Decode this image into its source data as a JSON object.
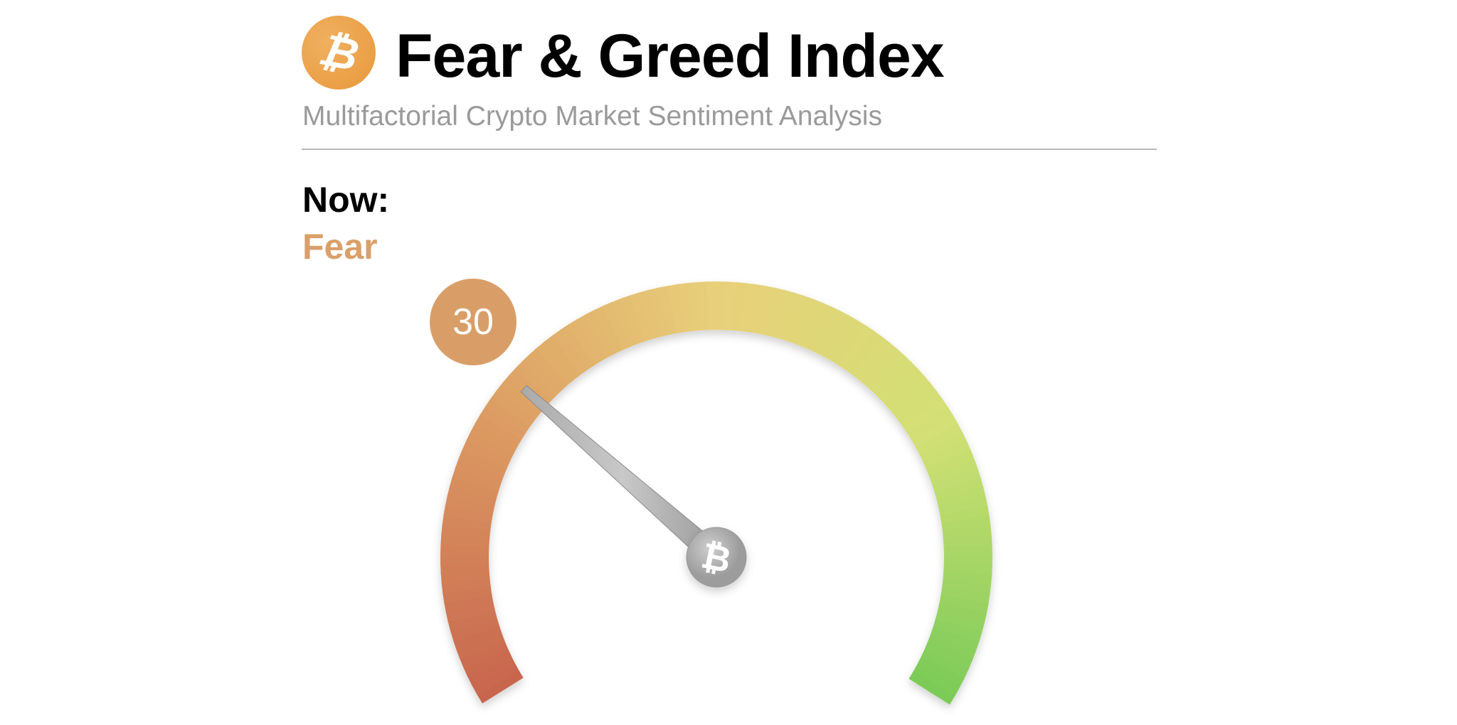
{
  "header": {
    "logo_icon": "bitcoin-icon",
    "logo_symbol": "₿",
    "title": "Fear & Greed Index",
    "subtitle": "Multifactorial Crypto Market Sentiment Analysis"
  },
  "status": {
    "label": "Now:",
    "classification": "Fear",
    "classification_color": "#d9a06a",
    "value": "30"
  },
  "gauge": {
    "min": 0,
    "max": 100,
    "value": 30,
    "hub_icon": "bitcoin-icon",
    "hub_symbol": "₿",
    "colors": [
      "#c8664e",
      "#dc9a62",
      "#e8d07a",
      "#d2e074",
      "#7ccb58"
    ]
  }
}
